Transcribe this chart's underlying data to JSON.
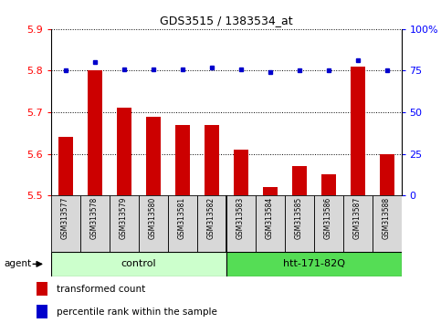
{
  "title": "GDS3515 / 1383534_at",
  "samples": [
    "GSM313577",
    "GSM313578",
    "GSM313579",
    "GSM313580",
    "GSM313581",
    "GSM313582",
    "GSM313583",
    "GSM313584",
    "GSM313585",
    "GSM313586",
    "GSM313587",
    "GSM313588"
  ],
  "red_values": [
    5.64,
    5.8,
    5.71,
    5.69,
    5.67,
    5.67,
    5.61,
    5.52,
    5.57,
    5.55,
    5.81,
    5.6
  ],
  "blue_values": [
    75,
    80,
    76,
    76,
    76,
    77,
    76,
    74,
    75,
    75,
    81,
    75
  ],
  "ylim_left": [
    5.5,
    5.9
  ],
  "ylim_right": [
    0,
    100
  ],
  "yticks_left": [
    5.5,
    5.6,
    5.7,
    5.8,
    5.9
  ],
  "yticks_right": [
    0,
    25,
    50,
    75,
    100
  ],
  "ytick_labels_right": [
    "0",
    "25",
    "50",
    "75",
    "100%"
  ],
  "agent_label": "agent",
  "legend_red": "transformed count",
  "legend_blue": "percentile rank within the sample",
  "bar_color": "#cc0000",
  "dot_color": "#0000cc",
  "control_color": "#ccffcc",
  "htt_color": "#55dd55",
  "sample_box_color": "#d8d8d8",
  "bar_width": 0.5
}
